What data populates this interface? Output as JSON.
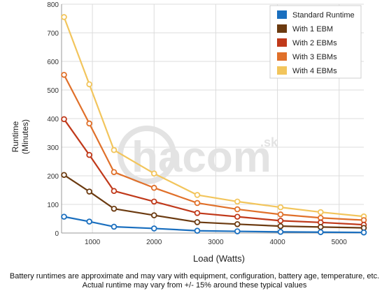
{
  "watermark": {
    "text": "hacom",
    "suffix": ".sk"
  },
  "footnote": {
    "line1": "Battery runtimes are approximate and may vary with equipment, configuration, battery age, temperature, etc.",
    "line2": "Actual runtime may vary from +/- 15% around these typical values"
  },
  "chart_data": {
    "type": "line",
    "title": "",
    "xlabel": "Load (Watts)",
    "ylabel_lines": [
      "Runtime",
      "(Minutes)"
    ],
    "xlim": [
      500,
      5400
    ],
    "ylim": [
      0,
      800
    ],
    "x_ticks": [
      1000,
      2000,
      3000,
      4000,
      5000
    ],
    "y_ticks": [
      0,
      100,
      200,
      300,
      400,
      500,
      600,
      700,
      800
    ],
    "grid": true,
    "legend_position": "top-right",
    "x": [
      540,
      950,
      1350,
      2000,
      2700,
      3350,
      4050,
      4700,
      5400
    ],
    "series": [
      {
        "name": "Standard Runtime",
        "color": "#1a6fbf",
        "values": [
          57,
          40,
          22,
          16,
          8,
          6,
          4,
          3,
          2
        ]
      },
      {
        "name": "With 1 EBM",
        "color": "#6b3a10",
        "values": [
          203,
          145,
          85,
          62,
          38,
          31,
          24,
          21,
          18
        ]
      },
      {
        "name": "With 2 EBMs",
        "color": "#c0391a",
        "values": [
          398,
          273,
          147,
          110,
          70,
          57,
          43,
          37,
          29
        ]
      },
      {
        "name": "With 3 EBMs",
        "color": "#e0702a",
        "values": [
          553,
          383,
          213,
          158,
          105,
          83,
          65,
          53,
          45
        ]
      },
      {
        "name": "With 4 EBMs",
        "color": "#f2c55c",
        "values": [
          755,
          520,
          290,
          208,
          133,
          110,
          90,
          73,
          58
        ]
      }
    ]
  }
}
